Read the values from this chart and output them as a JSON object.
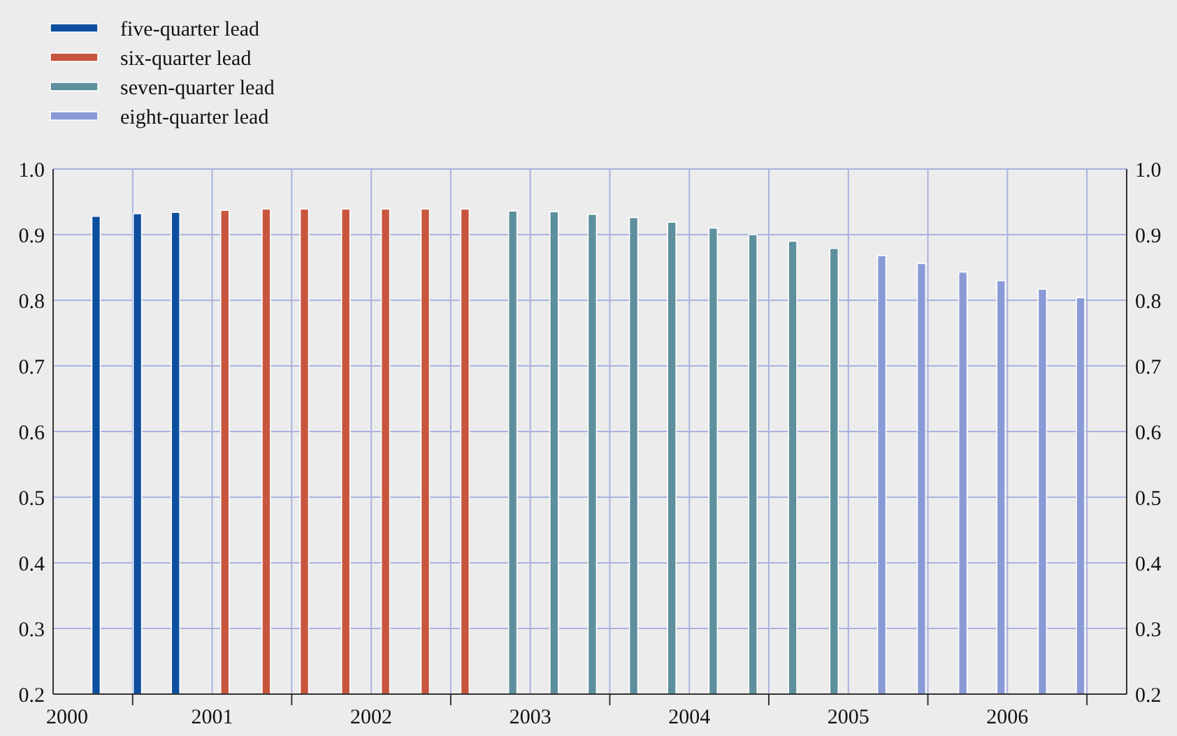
{
  "chart_data": {
    "type": "bar",
    "xlim": [
      2000.5,
      2007.25
    ],
    "ylim": [
      0.2,
      1.0
    ],
    "xticks": [
      {
        "value": 2000.5,
        "label": "2000"
      },
      {
        "value": 2001,
        "label": null
      },
      {
        "value": 2001.5,
        "label": "2001"
      },
      {
        "value": 2002,
        "label": null
      },
      {
        "value": 2002.5,
        "label": "2002"
      },
      {
        "value": 2003,
        "label": null
      },
      {
        "value": 2003.5,
        "label": "2003"
      },
      {
        "value": 2004,
        "label": null
      },
      {
        "value": 2004.5,
        "label": "2004"
      },
      {
        "value": 2005,
        "label": null
      },
      {
        "value": 2005.5,
        "label": "2005"
      },
      {
        "value": 2006,
        "label": null
      },
      {
        "value": 2006.5,
        "label": "2006"
      },
      {
        "value": 2007,
        "label": null
      }
    ],
    "yticks": [
      0.2,
      0.3,
      0.4,
      0.5,
      0.6,
      0.7,
      0.8,
      0.9,
      {
        "value": 1,
        "label": "1.0"
      }
    ],
    "y2lim": [
      0.2,
      1.0
    ],
    "y2ticks": [
      0.2,
      0.3,
      0.4,
      0.5,
      0.6,
      0.7,
      0.8,
      0.9,
      {
        "value": 1,
        "label": "1.0"
      }
    ],
    "grid": true,
    "legend": "top left",
    "series": [
      {
        "name": "five-quarter lead",
        "color": "#0d4f9e",
        "x": [
          2000.77,
          2001.03,
          2001.27
        ],
        "values": [
          0.928,
          0.932,
          0.934
        ]
      },
      {
        "name": "six-quarter lead",
        "color": "#c8553d",
        "x": [
          2001.58,
          2001.84,
          2002.08,
          2002.34,
          2002.59,
          2002.84,
          2003.09
        ],
        "values": [
          0.937,
          0.939,
          0.939,
          0.939,
          0.939,
          0.939,
          0.939
        ]
      },
      {
        "name": "seven-quarter lead",
        "color": "#5e8f9c",
        "x": [
          2003.39,
          2003.65,
          2003.89,
          2004.15,
          2004.39,
          2004.65,
          2004.9,
          2005.15,
          2005.41
        ],
        "values": [
          0.936,
          0.935,
          0.931,
          0.926,
          0.919,
          0.91,
          0.9,
          0.89,
          0.879
        ]
      },
      {
        "name": "eight-quarter lead",
        "color": "#8a9ad6",
        "x": [
          2005.71,
          2005.96,
          2006.22,
          2006.46,
          2006.72,
          2006.96
        ],
        "values": [
          0.868,
          0.856,
          0.843,
          0.83,
          0.817,
          0.804
        ]
      }
    ]
  }
}
